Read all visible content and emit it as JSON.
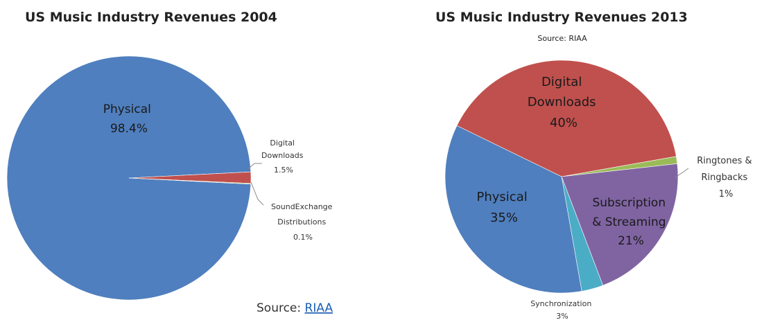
{
  "chart_data": [
    {
      "type": "pie",
      "title": "US Music Industry Revenues 2004",
      "source_prefix": "Source: ",
      "source_link": "RIAA",
      "slices": [
        {
          "name": "Physical",
          "pct_label": "98.4%",
          "value": 98.4,
          "color": "#4f7fbe"
        },
        {
          "name": "Digital Downloads",
          "pct_label": "1.5%",
          "value": 1.5,
          "color": "#c0504d"
        },
        {
          "name": "SoundExchange Distributions",
          "pct_label": "0.1%",
          "value": 0.1,
          "color": "#9bbb59"
        }
      ]
    },
    {
      "type": "pie",
      "title": "US Music Industry Revenues 2013",
      "subtitle": "Source: RIAA",
      "slices": [
        {
          "name": "Digital Downloads",
          "pct_label": "40%",
          "value": 40,
          "color": "#c0504d"
        },
        {
          "name": "Ringtones & Ringbacks",
          "pct_label": "1%",
          "value": 1,
          "color": "#9bbb59"
        },
        {
          "name": "Subscription & Streaming",
          "pct_label": "21%",
          "value": 21,
          "color": "#8064a2"
        },
        {
          "name": "Synchronization",
          "pct_label": "3%",
          "value": 3,
          "color": "#4bacc6"
        },
        {
          "name": "Physical",
          "pct_label": "35%",
          "value": 35,
          "color": "#4f7fbe"
        }
      ]
    }
  ]
}
